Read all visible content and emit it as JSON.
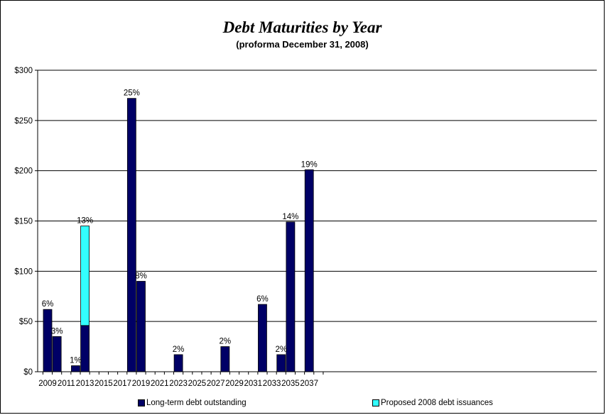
{
  "chart_data": {
    "type": "bar",
    "stacked": true,
    "title": "Debt Maturities by Year",
    "subtitle": "(proforma December 31, 2008)",
    "xlabel": "",
    "ylabel": "",
    "ylim": [
      0,
      300
    ],
    "y_ticks": [
      "$0",
      "$50",
      "$100",
      "$150",
      "$200",
      "$250",
      "$300"
    ],
    "y_tick_values": [
      0,
      50,
      100,
      150,
      200,
      250,
      300
    ],
    "x_tick_labels": [
      "2009",
      "2011",
      "2013",
      "2015",
      "2017",
      "2019",
      "2021",
      "2023",
      "2025",
      "2027",
      "2029",
      "2031",
      "2033",
      "2035",
      "2037"
    ],
    "categories": [
      "2009",
      "2010",
      "2011",
      "2012",
      "2013",
      "2014",
      "2015",
      "2016",
      "2017",
      "2018",
      "2019",
      "2020",
      "2021",
      "2022",
      "2023",
      "2024",
      "2025",
      "2026",
      "2027",
      "2028",
      "2029",
      "2030",
      "2031",
      "2032",
      "2033",
      "2034",
      "2035",
      "2036",
      "2037",
      "2038"
    ],
    "series": [
      {
        "name": "Long-term debt outstanding",
        "color": "#000066",
        "values": [
          62,
          35,
          0,
          6,
          46,
          0,
          0,
          0,
          0,
          272,
          90,
          0,
          0,
          0,
          17,
          0,
          0,
          0,
          0,
          25,
          0,
          0,
          0,
          67,
          0,
          17,
          149,
          0,
          201,
          0
        ]
      },
      {
        "name": "Proposed 2008 debt issuances",
        "color": "#33ffff",
        "values": [
          0,
          0,
          0,
          0,
          99,
          0,
          0,
          0,
          0,
          0,
          0,
          0,
          0,
          0,
          0,
          0,
          0,
          0,
          0,
          0,
          0,
          0,
          0,
          0,
          0,
          0,
          0,
          0,
          0,
          0
        ]
      }
    ],
    "data_labels": [
      "6%",
      "3%",
      "",
      "1%",
      "13%",
      "",
      "",
      "",
      "",
      "25%",
      "8%",
      "",
      "",
      "",
      "2%",
      "",
      "",
      "",
      "",
      "2%",
      "",
      "",
      "",
      "6%",
      "",
      "2%",
      "14%",
      "",
      "19%",
      ""
    ],
    "grid": true,
    "legend_position": "bottom"
  }
}
